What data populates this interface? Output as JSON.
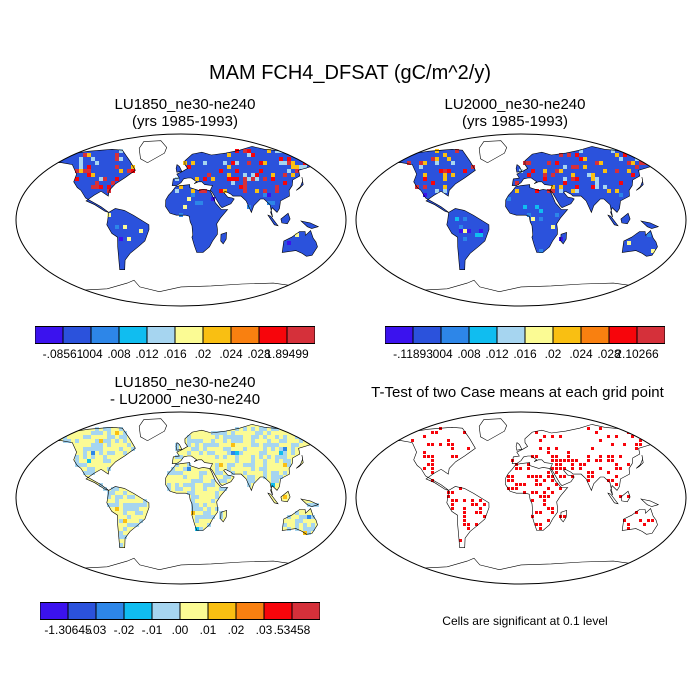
{
  "title": "MAM FCH4_DFSAT (gC/m^2/y)",
  "panels": [
    {
      "id": "lu1850",
      "title_lines": [
        "LU1850_ne30-ne240",
        "(yrs 1985-1993)"
      ],
      "field": "case_mean",
      "colorbar": {
        "colors": [
          "#3b12ee",
          "#2b52dc",
          "#2d86e8",
          "#10bdf0",
          "#a6d5f0",
          "#fbfb94",
          "#f9bf12",
          "#f98010",
          "#f7050b",
          "#d5303a"
        ],
        "labels": [
          "-.08561",
          ".004",
          ".008",
          ".012",
          ".016",
          ".02",
          ".024",
          ".028",
          "1.89499"
        ]
      }
    },
    {
      "id": "lu2000",
      "title_lines": [
        "LU2000_ne30-ne240",
        "(yrs 1985-1993)"
      ],
      "field": "case_mean",
      "colorbar": {
        "colors": [
          "#3b12ee",
          "#2b52dc",
          "#2d86e8",
          "#10bdf0",
          "#a6d5f0",
          "#fbfb94",
          "#f9bf12",
          "#f98010",
          "#f7050b",
          "#d5303a"
        ],
        "labels": [
          "-.11893",
          ".004",
          ".008",
          ".012",
          ".016",
          ".02",
          ".024",
          ".028",
          "2.10266"
        ]
      }
    },
    {
      "id": "difference",
      "title_lines": [
        "LU1850_ne30-ne240",
        "- LU2000_ne30-ne240"
      ],
      "field": "difference",
      "colorbar": {
        "colors": [
          "#3b12ee",
          "#2b52dc",
          "#2d86e8",
          "#10bdf0",
          "#a6d5f0",
          "#fbfb94",
          "#f9bf12",
          "#f98010",
          "#f7050b",
          "#d5303a"
        ],
        "labels": [
          "-1.30645",
          "-.03",
          "-.02",
          "-.01",
          ".00",
          ".01",
          ".02",
          ".03",
          ".53458"
        ]
      }
    },
    {
      "id": "ttest",
      "title_lines": [
        "T-Test of two Case means at each grid point"
      ],
      "field": "significance",
      "note": "Cells are significant at 0.1 level"
    }
  ],
  "colors": {
    "land_mean": "#2b52dc",
    "land_diff_pos": "#fbfb94",
    "land_diff_neg": "#a6d5f0",
    "significant": "#f7050b",
    "coast": "#000000"
  }
}
